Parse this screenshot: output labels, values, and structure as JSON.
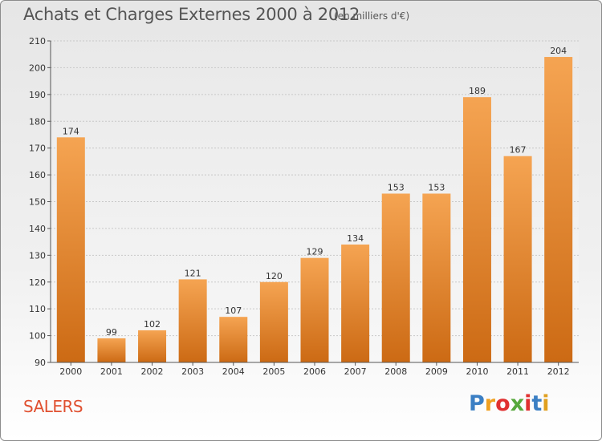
{
  "title": "Achats et Charges Externes 2000 à 2012",
  "subtitle": "(en milliers d'€)",
  "city": "SALERS",
  "brand": {
    "letters": [
      "P",
      "r",
      "o",
      "x",
      "i",
      "t",
      "i"
    ],
    "colors": [
      "#3b7fc4",
      "#f0a020",
      "#e03030",
      "#56a83c",
      "#e03030",
      "#3b7fc4",
      "#e0a020"
    ]
  },
  "colors": {
    "bar_top": "#f5a452",
    "bar_bottom": "#cc6a14",
    "axis": "#555555",
    "grid": "#c8c8c8",
    "text": "#333333"
  },
  "chart_data": {
    "type": "bar",
    "categories": [
      "2000",
      "2001",
      "2002",
      "2003",
      "2004",
      "2005",
      "2006",
      "2007",
      "2008",
      "2009",
      "2010",
      "2011",
      "2012"
    ],
    "values": [
      174,
      99,
      102,
      121,
      107,
      120,
      129,
      134,
      153,
      153,
      189,
      167,
      204
    ],
    "ylim": [
      90,
      210
    ],
    "yticks": [
      90,
      100,
      110,
      120,
      130,
      140,
      150,
      160,
      170,
      180,
      190,
      200,
      210
    ],
    "grid": true,
    "xlabel": "",
    "ylabel": ""
  }
}
